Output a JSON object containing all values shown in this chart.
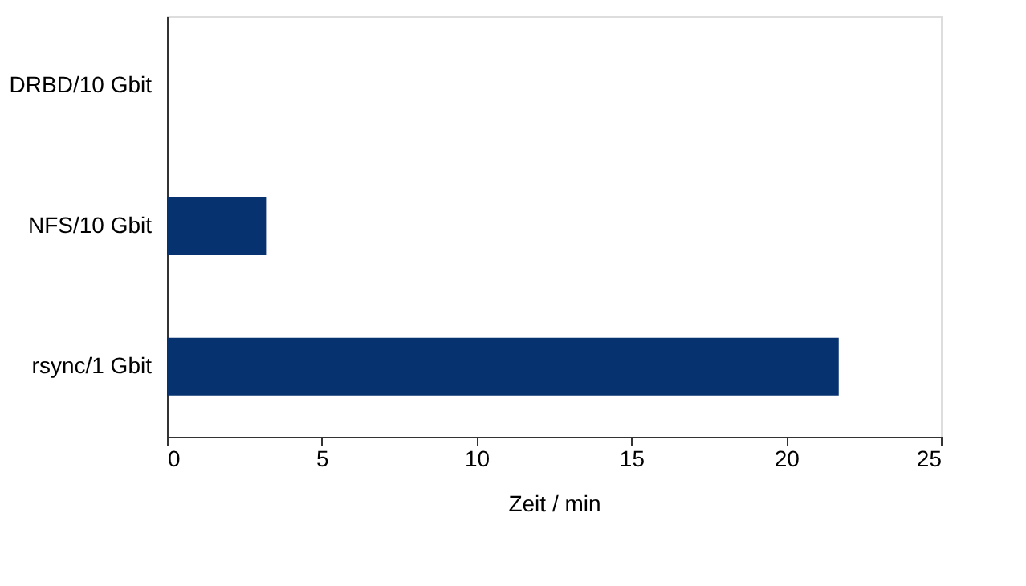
{
  "chart_data": {
    "type": "bar",
    "orientation": "horizontal",
    "xlabel": "Zeit / min",
    "categories": [
      "DRBD/10 Gbit",
      "NFS/10 Gbit",
      "rsync/1 Gbit"
    ],
    "values": [
      0,
      3.2,
      21.7
    ],
    "color": "#06326f",
    "xlim": [
      0,
      25
    ],
    "xticks": [
      0,
      5,
      10,
      15,
      20,
      25
    ],
    "grid": false
  }
}
